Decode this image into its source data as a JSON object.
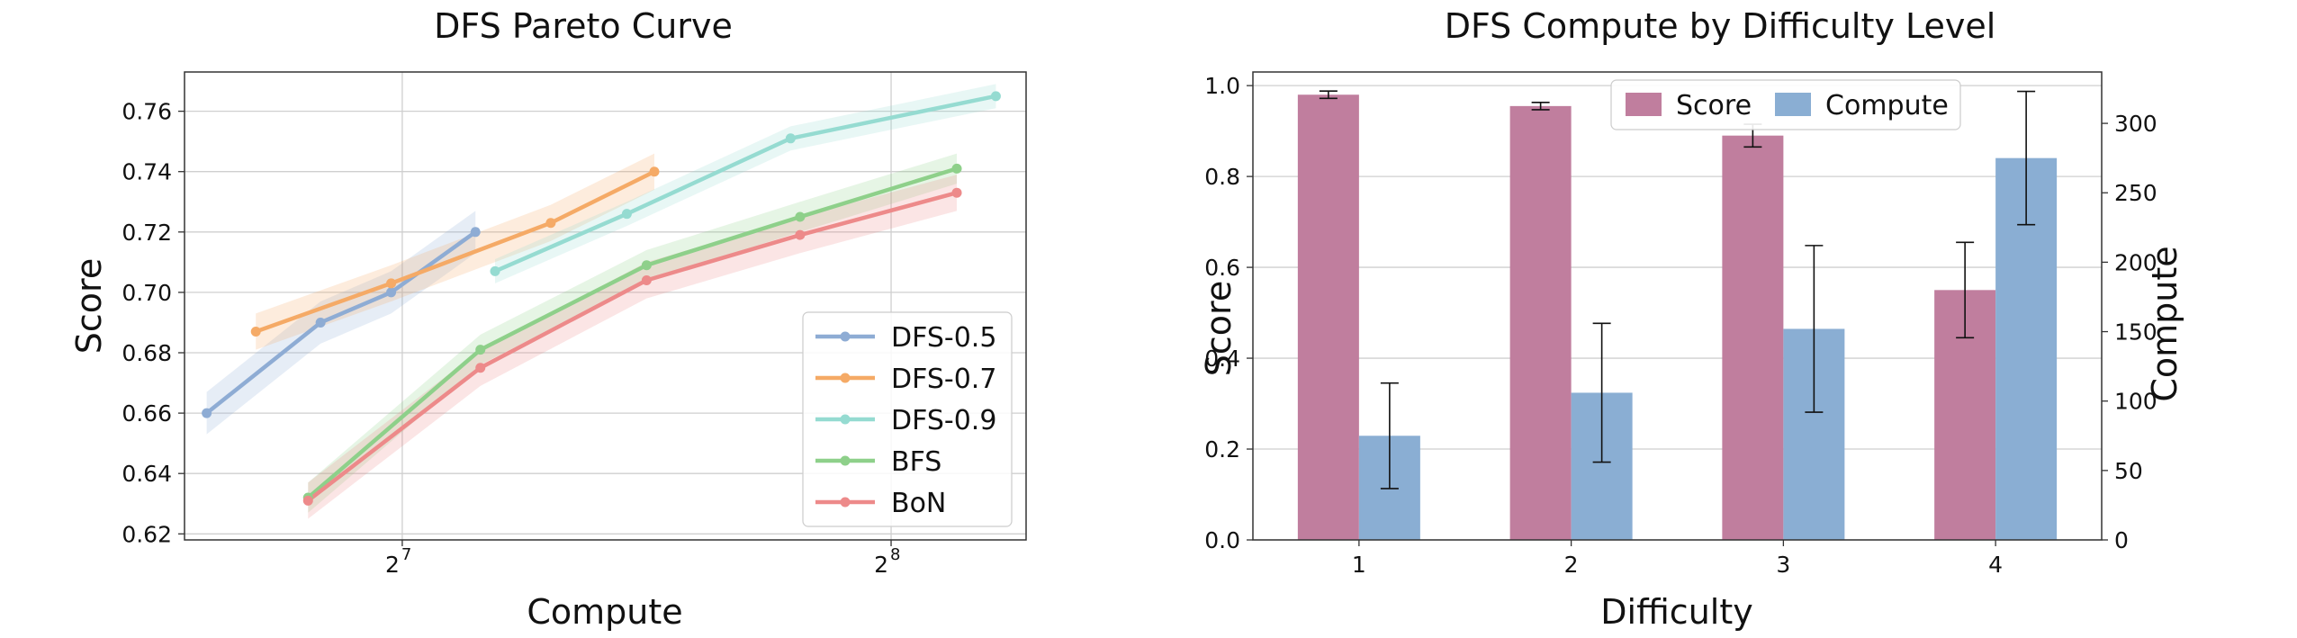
{
  "chart_data": [
    {
      "type": "line",
      "title": "DFS Pareto Curve",
      "xlabel": "Compute",
      "ylabel": "Score",
      "x_scale": "log2",
      "xlim": [
        94,
        310
      ],
      "ylim": [
        0.618,
        0.773
      ],
      "x_ticks": [
        {
          "value": 128,
          "base": "2",
          "exp": "7"
        },
        {
          "value": 256,
          "base": "2",
          "exp": "8"
        }
      ],
      "y_ticks": [
        "0.62",
        "0.64",
        "0.66",
        "0.68",
        "0.70",
        "0.72",
        "0.74",
        "0.76"
      ],
      "grid": true,
      "legend_position": "lower-right",
      "series": [
        {
          "name": "DFS-0.5",
          "color": "#8eacd4",
          "band": 0.007,
          "x": [
            97,
            114,
            126,
            142
          ],
          "y": [
            0.66,
            0.69,
            0.7,
            0.72
          ]
        },
        {
          "name": "DFS-0.7",
          "color": "#f5aa66",
          "band": 0.006,
          "x": [
            104,
            126,
            158,
            183
          ],
          "y": [
            0.687,
            0.703,
            0.723,
            0.74
          ]
        },
        {
          "name": "DFS-0.9",
          "color": "#95dbd1",
          "band": 0.004,
          "x": [
            146,
            176,
            222,
            297
          ],
          "y": [
            0.707,
            0.726,
            0.751,
            0.765
          ]
        },
        {
          "name": "BFS",
          "color": "#8ed08a",
          "band": 0.005,
          "x": [
            112,
            143,
            181,
            225,
            281
          ],
          "y": [
            0.632,
            0.681,
            0.709,
            0.725,
            0.741
          ]
        },
        {
          "name": "BoN",
          "color": "#ed8a8a",
          "band": 0.006,
          "x": [
            112,
            143,
            181,
            225,
            281
          ],
          "y": [
            0.631,
            0.675,
            0.704,
            0.719,
            0.733
          ]
        }
      ]
    },
    {
      "type": "bar",
      "title": "DFS Compute by Difficulty Level",
      "xlabel": "Difficulty",
      "ylabel": "Score",
      "ylabel_right": "Compute",
      "categories": [
        "1",
        "2",
        "3",
        "4"
      ],
      "ylim": [
        0,
        1.03
      ],
      "ylim_right": [
        0,
        337
      ],
      "y_ticks": [
        "0.0",
        "0.2",
        "0.4",
        "0.6",
        "0.8",
        "1.0"
      ],
      "y_ticks_right": [
        "0",
        "50",
        "100",
        "150",
        "200",
        "250",
        "300"
      ],
      "grid": true,
      "legend_position": "top-center",
      "series": [
        {
          "name": "Score",
          "axis": "left",
          "color": "#c07e9e",
          "values": [
            0.98,
            0.955,
            0.89,
            0.55
          ],
          "errors": [
            0.008,
            0.008,
            0.025,
            0.105
          ]
        },
        {
          "name": "Compute",
          "axis": "right",
          "color": "#8aaed3",
          "values": [
            75,
            106,
            152,
            275
          ],
          "errors": [
            38,
            50,
            60,
            48
          ]
        }
      ]
    }
  ]
}
